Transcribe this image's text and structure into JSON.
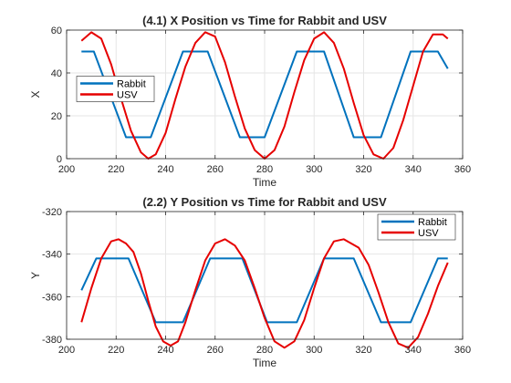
{
  "colors": {
    "rabbit": "#0072BD",
    "usv": "#E60000",
    "grid": "#E6E6E6",
    "axes": "#262626",
    "background": "#FFFFFF"
  },
  "chart_data": [
    {
      "type": "line",
      "title": "(4.1) X Position vs Time for Rabbit and USV",
      "xlabel": "Time",
      "ylabel": "X",
      "xlim": [
        200,
        360
      ],
      "ylim": [
        0,
        60
      ],
      "xticks": [
        200,
        220,
        240,
        260,
        280,
        300,
        320,
        340,
        360
      ],
      "yticks": [
        0,
        20,
        40,
        60
      ],
      "grid": true,
      "legend": "middle-left",
      "series": [
        {
          "name": "Rabbit",
          "color": "#0072BD",
          "x": [
            206,
            211,
            224,
            234,
            247,
            257,
            270,
            280,
            293,
            304,
            316,
            327,
            339,
            350,
            354
          ],
          "y": [
            50,
            50,
            10,
            10,
            50,
            50,
            10,
            10,
            50,
            50,
            10,
            10,
            50,
            50,
            42
          ]
        },
        {
          "name": "USV",
          "color": "#E60000",
          "x": [
            206,
            210,
            214,
            218,
            222,
            226,
            230,
            233,
            236,
            240,
            244,
            248,
            252,
            256,
            260,
            264,
            268,
            272,
            276,
            280,
            284,
            288,
            292,
            296,
            300,
            304,
            308,
            312,
            316,
            320,
            324,
            328,
            332,
            336,
            340,
            344,
            348,
            352,
            354
          ],
          "y": [
            55,
            59,
            56,
            44,
            28,
            13,
            3,
            0,
            2,
            12,
            28,
            43,
            54,
            59,
            57,
            45,
            29,
            14,
            4,
            0,
            4,
            15,
            31,
            46,
            56,
            59,
            54,
            42,
            26,
            11,
            2,
            0,
            5,
            18,
            34,
            50,
            58,
            58,
            56
          ]
        }
      ]
    },
    {
      "type": "line",
      "title": "(2.2) Y Position vs Time for Rabbit and USV",
      "xlabel": "Time",
      "ylabel": "Y",
      "xlim": [
        200,
        360
      ],
      "ylim": [
        -380,
        -320
      ],
      "xticks": [
        200,
        220,
        240,
        260,
        280,
        300,
        320,
        340,
        360
      ],
      "yticks": [
        -380,
        -360,
        -340,
        -320
      ],
      "grid": true,
      "legend": "top-right",
      "series": [
        {
          "name": "Rabbit",
          "color": "#0072BD",
          "x": [
            206,
            212,
            225,
            236,
            247,
            258,
            271,
            281,
            293,
            304,
            316,
            327,
            339,
            350,
            354
          ],
          "y": [
            -357,
            -342,
            -342,
            -372,
            -372,
            -342,
            -342,
            -372,
            -372,
            -342,
            -342,
            -372,
            -372,
            -342,
            -342
          ]
        },
        {
          "name": "USV",
          "color": "#E60000",
          "x": [
            206,
            210,
            214,
            218,
            221,
            224,
            227,
            230,
            233,
            236,
            239,
            242,
            245,
            248,
            252,
            256,
            260,
            264,
            268,
            272,
            276,
            280,
            284,
            288,
            292,
            296,
            300,
            304,
            308,
            312,
            315,
            318,
            322,
            326,
            330,
            334,
            338,
            342,
            346,
            350,
            354
          ],
          "y": [
            -372,
            -356,
            -342,
            -334,
            -333,
            -335,
            -339,
            -349,
            -362,
            -374,
            -381,
            -383,
            -381,
            -372,
            -357,
            -343,
            -335,
            -333,
            -336,
            -343,
            -356,
            -370,
            -381,
            -384,
            -381,
            -371,
            -356,
            -342,
            -334,
            -333,
            -335,
            -337,
            -345,
            -358,
            -372,
            -382,
            -384,
            -379,
            -368,
            -355,
            -344
          ]
        }
      ]
    }
  ]
}
